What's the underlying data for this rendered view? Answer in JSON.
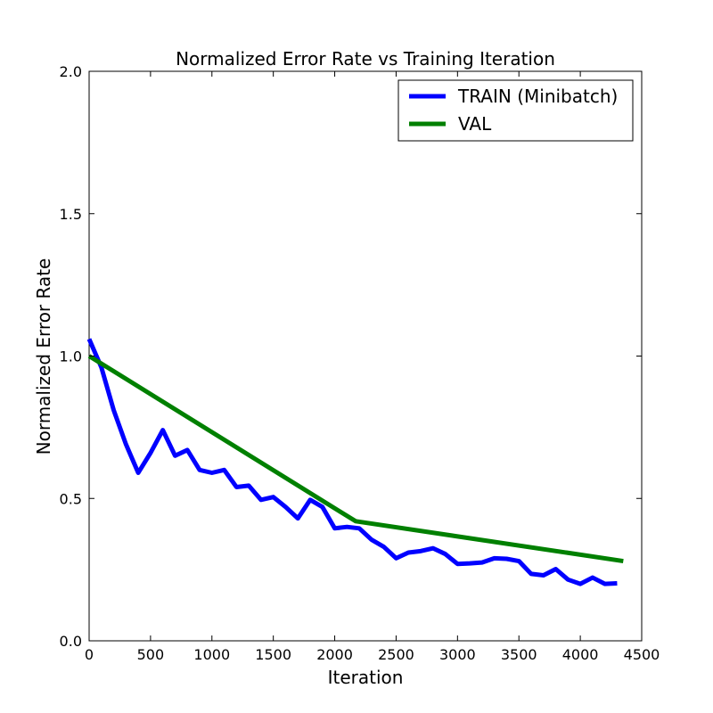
{
  "chart_data": {
    "type": "line",
    "title": "Normalized Error Rate vs Training Iteration",
    "xlabel": "Iteration",
    "ylabel": "Normalized Error Rate",
    "xlim": [
      0,
      4500
    ],
    "ylim": [
      0.0,
      2.0
    ],
    "xticks": [
      0,
      500,
      1000,
      1500,
      2000,
      2500,
      3000,
      3500,
      4000,
      4500
    ],
    "xtick_labels": [
      "0",
      "500",
      "1000",
      "1500",
      "2000",
      "2500",
      "3000",
      "3500",
      "4000",
      "4500"
    ],
    "yticks": [
      0.0,
      0.5,
      1.0,
      1.5,
      2.0
    ],
    "ytick_labels": [
      "0.0",
      "0.5",
      "1.0",
      "1.5",
      "2.0"
    ],
    "grid": false,
    "legend_position": "top-right",
    "series": [
      {
        "name": "TRAIN (Minibatch)",
        "color": "#0000ff",
        "x": [
          0,
          100,
          200,
          300,
          400,
          500,
          600,
          700,
          800,
          900,
          1000,
          1100,
          1200,
          1300,
          1400,
          1500,
          1600,
          1700,
          1800,
          1900,
          2000,
          2100,
          2200,
          2300,
          2400,
          2500,
          2600,
          2700,
          2800,
          2900,
          3000,
          3100,
          3200,
          3300,
          3400,
          3500,
          3600,
          3700,
          3800,
          3900,
          4000,
          4100,
          4200,
          4300
        ],
        "y": [
          1.06,
          0.96,
          0.81,
          0.69,
          0.59,
          0.66,
          0.74,
          0.65,
          0.67,
          0.6,
          0.59,
          0.6,
          0.54,
          0.545,
          0.495,
          0.505,
          0.47,
          0.43,
          0.495,
          0.47,
          0.395,
          0.4,
          0.395,
          0.355,
          0.33,
          0.29,
          0.31,
          0.315,
          0.325,
          0.305,
          0.27,
          0.272,
          0.275,
          0.29,
          0.288,
          0.28,
          0.235,
          0.23,
          0.252,
          0.215,
          0.2,
          0.222,
          0.2,
          0.202
        ]
      },
      {
        "name": "VAL",
        "color": "#008000",
        "x": [
          0,
          2170,
          4350
        ],
        "y": [
          1.0,
          0.42,
          0.28
        ]
      }
    ]
  }
}
